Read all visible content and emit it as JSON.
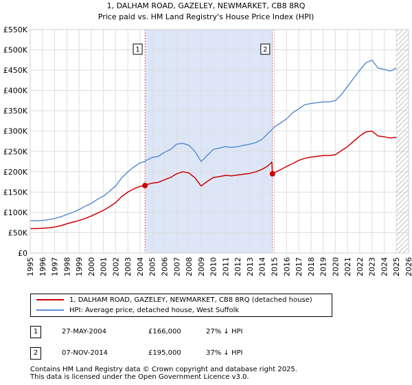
{
  "header": {
    "title_line1": "1, DALHAM ROAD, GAZELEY, NEWMARKET, CB8 8RQ",
    "title_line2": "Price paid vs. HM Land Registry's House Price Index (HPI)"
  },
  "colors": {
    "property": "#cc0000",
    "hpi": "#5b8fd4",
    "shade": "#dde6f7",
    "marker_line": "#e07070",
    "grid": "#dddddd",
    "hatch": "#aaaaaa"
  },
  "legend": {
    "property_label": "1, DALHAM ROAD, GAZELEY, NEWMARKET, CB8 8RQ (detached house)",
    "hpi_label": "HPI: Average price, detached house, West Suffolk"
  },
  "sales": [
    {
      "num": "1",
      "date": "27-MAY-2004",
      "price": "£166,000",
      "hpi_diff": "27% ↓ HPI"
    },
    {
      "num": "2",
      "date": "07-NOV-2014",
      "price": "£195,000",
      "hpi_diff": "37% ↓ HPI"
    }
  ],
  "footer": {
    "line1": "Contains HM Land Registry data © Crown copyright and database right 2025.",
    "line2": "This data is licensed under the Open Government Licence v3.0."
  },
  "chart_data": {
    "type": "line",
    "title": "1, DALHAM ROAD, GAZELEY, NEWMARKET, CB8 8RQ — Price paid vs. HM Land Registry's House Price Index (HPI)",
    "xlabel": "",
    "ylabel": "",
    "xlim": [
      1995,
      2026
    ],
    "ylim": [
      0,
      550000
    ],
    "x_ticks": [
      "1995",
      "1996",
      "1997",
      "1998",
      "1999",
      "2000",
      "2001",
      "2002",
      "2003",
      "2004",
      "2005",
      "2006",
      "2007",
      "2008",
      "2009",
      "2010",
      "2011",
      "2012",
      "2013",
      "2014",
      "2015",
      "2016",
      "2017",
      "2018",
      "2019",
      "2020",
      "2021",
      "2022",
      "2023",
      "2024",
      "2025",
      "2026"
    ],
    "y_ticks": [
      {
        "value": 0,
        "label": "£0"
      },
      {
        "value": 50000,
        "label": "£50K"
      },
      {
        "value": 100000,
        "label": "£100K"
      },
      {
        "value": 150000,
        "label": "£150K"
      },
      {
        "value": 200000,
        "label": "£200K"
      },
      {
        "value": 250000,
        "label": "£250K"
      },
      {
        "value": 300000,
        "label": "£300K"
      },
      {
        "value": 350000,
        "label": "£350K"
      },
      {
        "value": 400000,
        "label": "£400K"
      },
      {
        "value": 450000,
        "label": "£450K"
      },
      {
        "value": 500000,
        "label": "£500K"
      },
      {
        "value": 550000,
        "label": "£550K"
      }
    ],
    "shaded_span": [
      2004.4,
      2014.85
    ],
    "future_hatch_from": 2025.0,
    "sale_markers": [
      {
        "label": "1",
        "x": 2004.4,
        "y": 166000
      },
      {
        "label": "2",
        "x": 2014.85,
        "y": 195000
      }
    ],
    "series": [
      {
        "name": "HPI: Average price, detached house, West Suffolk",
        "color_key": "hpi",
        "x": [
          1995.0,
          1995.5,
          1996.0,
          1996.5,
          1997.0,
          1997.5,
          1998.0,
          1998.5,
          1999.0,
          1999.5,
          2000.0,
          2000.5,
          2001.0,
          2001.5,
          2002.0,
          2002.5,
          2003.0,
          2003.5,
          2004.0,
          2004.4,
          2004.5,
          2005.0,
          2005.5,
          2006.0,
          2006.5,
          2007.0,
          2007.5,
          2008.0,
          2008.5,
          2009.0,
          2009.5,
          2010.0,
          2010.5,
          2011.0,
          2011.5,
          2012.0,
          2012.5,
          2013.0,
          2013.5,
          2014.0,
          2014.5,
          2014.85,
          2015.0,
          2015.5,
          2016.0,
          2016.5,
          2017.0,
          2017.5,
          2018.0,
          2018.5,
          2019.0,
          2019.5,
          2020.0,
          2020.5,
          2021.0,
          2021.5,
          2022.0,
          2022.5,
          2023.0,
          2023.5,
          2024.0,
          2024.5,
          2025.0
        ],
        "values": [
          80000,
          79000,
          80000,
          82000,
          85000,
          89000,
          95000,
          100000,
          107000,
          115000,
          122000,
          132000,
          140000,
          152000,
          165000,
          185000,
          200000,
          212000,
          222000,
          225000,
          228000,
          235000,
          238000,
          248000,
          255000,
          268000,
          270000,
          265000,
          250000,
          225000,
          240000,
          255000,
          258000,
          262000,
          260000,
          262000,
          265000,
          268000,
          272000,
          280000,
          295000,
          305000,
          310000,
          320000,
          330000,
          345000,
          355000,
          365000,
          368000,
          370000,
          372000,
          372000,
          375000,
          390000,
          410000,
          430000,
          450000,
          468000,
          475000,
          455000,
          452000,
          448000,
          455000
        ]
      },
      {
        "name": "1, DALHAM ROAD, GAZELEY, NEWMARKET, CB8 8RQ (detached house)",
        "color_key": "property",
        "x": [
          1995.0,
          1995.5,
          1996.0,
          1996.5,
          1997.0,
          1997.5,
          1998.0,
          1998.5,
          1999.0,
          1999.5,
          2000.0,
          2000.5,
          2001.0,
          2001.5,
          2002.0,
          2002.5,
          2003.0,
          2003.5,
          2004.0,
          2004.4,
          2004.5,
          2005.0,
          2005.5,
          2006.0,
          2006.5,
          2007.0,
          2007.5,
          2008.0,
          2008.5,
          2009.0,
          2009.5,
          2010.0,
          2010.5,
          2011.0,
          2011.5,
          2012.0,
          2012.5,
          2013.0,
          2013.5,
          2014.0,
          2014.5,
          2014.8,
          2014.85,
          2015.0,
          2015.5,
          2016.0,
          2016.5,
          2017.0,
          2017.5,
          2018.0,
          2018.5,
          2019.0,
          2019.5,
          2020.0,
          2020.5,
          2021.0,
          2021.5,
          2022.0,
          2022.5,
          2023.0,
          2023.5,
          2024.0,
          2024.5,
          2025.0
        ],
        "values": [
          60000,
          60000,
          61000,
          62000,
          64000,
          67000,
          72000,
          76000,
          80000,
          85000,
          91000,
          98000,
          105000,
          114000,
          124000,
          139000,
          150000,
          158000,
          164000,
          166000,
          168000,
          172000,
          174000,
          180000,
          186000,
          195000,
          200000,
          197000,
          185000,
          165000,
          176000,
          186000,
          188000,
          191000,
          190000,
          192000,
          194000,
          196000,
          200000,
          206000,
          215000,
          224000,
          195000,
          198000,
          205000,
          213000,
          220000,
          228000,
          233000,
          236000,
          238000,
          240000,
          240000,
          242000,
          252000,
          262000,
          275000,
          288000,
          298000,
          300000,
          288000,
          286000,
          283000,
          285000
        ]
      }
    ]
  }
}
